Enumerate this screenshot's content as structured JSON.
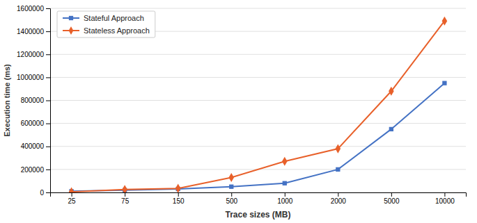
{
  "chart_data": {
    "type": "line",
    "x_label": "Trace sizes (MB)",
    "y_label": "Execution time (ms)",
    "categories": [
      "25",
      "75",
      "150",
      "500",
      "1000",
      "2000",
      "5000",
      "10000"
    ],
    "series": [
      {
        "name": "Stateful Approach",
        "color": "#4472c4",
        "marker": "square",
        "values": [
          10000,
          20000,
          30000,
          50000,
          80000,
          200000,
          550000,
          950000
        ]
      },
      {
        "name": "Stateless Approach",
        "color": "#e8602a",
        "marker": "diamond",
        "values": [
          5000,
          25000,
          35000,
          130000,
          270000,
          380000,
          880000,
          1490000
        ]
      }
    ],
    "ylim": [
      0,
      1600000
    ],
    "yticks": [
      0,
      200000,
      400000,
      600000,
      800000,
      1000000,
      1200000,
      1400000,
      1600000
    ],
    "grid": true,
    "legend": "upper left"
  }
}
